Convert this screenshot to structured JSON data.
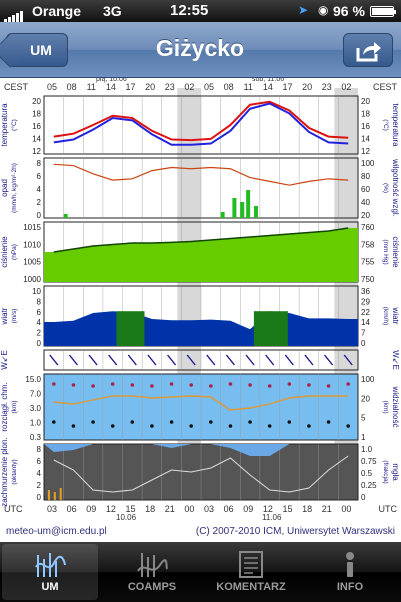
{
  "status_bar": {
    "carrier": "Orange",
    "network": "3G",
    "time": "12:55",
    "battery": "96 %",
    "battery_level": 0.96
  },
  "nav": {
    "back_label": "UM",
    "title": "Giżycko"
  },
  "meteogram": {
    "time_zone_top": "CEST",
    "time_zone_bottom": "UTC",
    "top_day_labels": [
      "pią, 10.06",
      "sob, 11.06"
    ],
    "top_hours": [
      "05",
      "08",
      "11",
      "14",
      "17",
      "20",
      "23",
      "02",
      "05",
      "08",
      "11",
      "14",
      "17",
      "20",
      "23",
      "02"
    ],
    "bottom_hours": [
      "03",
      "06",
      "09",
      "12",
      "15",
      "18",
      "21",
      "00",
      "03",
      "06",
      "09",
      "12",
      "15",
      "18",
      "21",
      "00"
    ],
    "bottom_dates": [
      "10.06",
      "11.06"
    ],
    "panels": [
      {
        "left_label": "temperatura",
        "left_unit": "(°C)",
        "right_label": "temperatura",
        "right_unit": "(°C)",
        "left_ticks": [
          "20",
          "18",
          "16",
          "14",
          "12"
        ],
        "right_ticks": [
          "20",
          "18",
          "16",
          "14",
          "12"
        ]
      },
      {
        "left_label": "opad",
        "left_unit": "(mm/h, kg/m²·2h)",
        "right_label": "wilgotność wzgl.",
        "right_unit": "(%)",
        "left_ticks": [
          "8",
          "6",
          "4",
          "2",
          "0"
        ],
        "right_ticks": [
          "100",
          "80",
          "60",
          "40",
          "20"
        ]
      },
      {
        "left_label": "ciśnienie",
        "left_unit": "(hPa)",
        "right_label": "ciśnienie",
        "right_unit": "(mm Hg)",
        "left_ticks": [
          "1015",
          "1010",
          "1005",
          "1000"
        ],
        "right_ticks": [
          "760",
          "758",
          "755",
          "750"
        ]
      },
      {
        "left_label": "wiatr",
        "left_unit": "(m/s)",
        "right_label": "wiatr",
        "right_unit": "(km/h)",
        "left_ticks": [
          "10",
          "8",
          "6",
          "4",
          "2",
          "0"
        ],
        "right_ticks": [
          "36",
          "29",
          "22",
          "14",
          "7",
          "0"
        ]
      },
      {
        "left_label": "W↙E",
        "left_unit": "",
        "right_label": "W↙E",
        "right_unit": ""
      },
      {
        "left_label": "rozciągł. chm.",
        "left_unit": "(km)",
        "right_label": "widzialność",
        "right_unit": "(km)",
        "left_ticks": [
          "15.0",
          "7.0",
          "3.0",
          "1.0",
          "0.3"
        ],
        "right_ticks": [
          "100",
          "20",
          "5",
          "1"
        ]
      },
      {
        "left_label": "zachmurzenie plon.",
        "left_unit": "(oktanty)",
        "right_label": "mgła",
        "right_unit": "(frakcja)",
        "left_ticks": [
          "8",
          "6",
          "4",
          "2",
          "0"
        ],
        "right_ticks": [
          "1.0",
          "0.75",
          "0.5",
          "0.25",
          "0"
        ]
      }
    ]
  },
  "footer": {
    "email": "meteo-um@icm.edu.pl",
    "copyright": "(C) 2007-2010 ICM, Uniwersytet Warszawski"
  },
  "tabs": [
    {
      "label": "UM",
      "active": true
    },
    {
      "label": "COAMPS",
      "active": false
    },
    {
      "label": "KOMENTARZ",
      "active": false
    },
    {
      "label": "INFO",
      "active": false
    }
  ],
  "colors": {
    "nav": "#6d8cb8",
    "temp": "#dd1111",
    "dewpoint": "#2222dd",
    "pressure": "#66cc00",
    "wind": "#0033aa",
    "sky": "#66b0ee"
  }
}
